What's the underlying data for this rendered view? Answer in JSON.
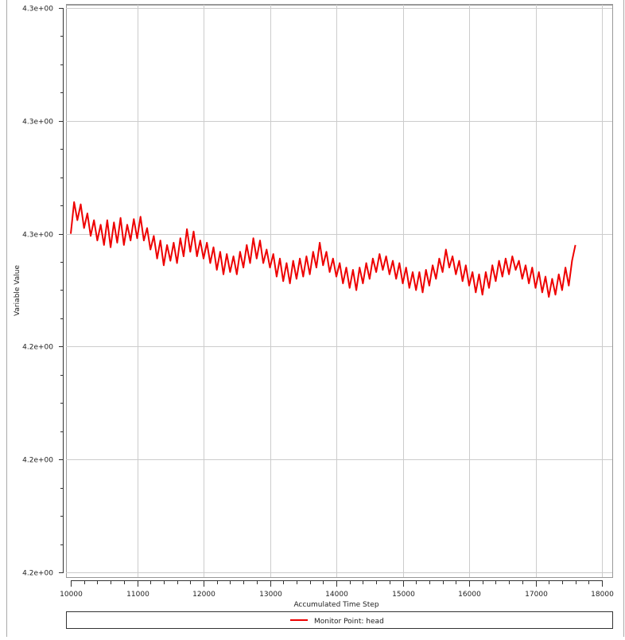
{
  "chart_data": {
    "type": "line",
    "title": "",
    "xlabel": "Accumulated Time Step",
    "ylabel": "Variable Value",
    "xlim": [
      10000,
      18000
    ],
    "ylim": [
      4.22,
      4.27
    ],
    "x_ticks": [
      10000,
      11000,
      12000,
      13000,
      14000,
      15000,
      16000,
      17000,
      18000
    ],
    "x_tick_labels": [
      "10000",
      "11000",
      "12000",
      "13000",
      "14000",
      "15000",
      "16000",
      "17000",
      "18000"
    ],
    "y_ticks": [
      4.27,
      4.26,
      4.25,
      4.24,
      4.23,
      4.22
    ],
    "y_tick_labels": [
      "4.3e+00",
      "4.3e+00",
      "4.3e+00",
      "4.2e+00",
      "4.2e+00",
      "4.2e+00"
    ],
    "grid": true,
    "legend_placement": "bottom",
    "series": [
      {
        "name": "Monitor Point: head",
        "color": "#ee0000",
        "x_start": 10000,
        "x_step": 50,
        "values": [
          4.25,
          4.2528,
          4.2512,
          4.2526,
          4.2505,
          4.2518,
          4.2498,
          4.2512,
          4.2494,
          4.2508,
          4.249,
          4.2512,
          4.2488,
          4.251,
          4.2492,
          4.2514,
          4.249,
          4.2508,
          4.2494,
          4.2513,
          4.2496,
          4.2515,
          4.2494,
          4.2505,
          4.2486,
          4.2498,
          4.2478,
          4.2494,
          4.2472,
          4.249,
          4.2476,
          4.2492,
          4.2474,
          4.2496,
          4.248,
          4.2504,
          4.2484,
          4.2502,
          4.248,
          4.2494,
          4.2478,
          4.2492,
          4.2474,
          4.2488,
          4.2468,
          4.2484,
          4.2464,
          4.2482,
          4.2466,
          4.248,
          4.2464,
          4.2484,
          4.247,
          4.249,
          4.2474,
          4.2496,
          4.2478,
          4.2494,
          4.2474,
          4.2486,
          4.247,
          4.2482,
          4.2462,
          4.2478,
          4.2458,
          4.2474,
          4.2456,
          4.2476,
          4.246,
          4.2478,
          4.2462,
          4.248,
          4.2464,
          4.2484,
          4.247,
          4.2492,
          4.2472,
          4.2484,
          4.2466,
          4.2478,
          4.2462,
          4.2474,
          4.2456,
          4.247,
          4.2452,
          4.2468,
          4.245,
          4.247,
          4.2456,
          4.2474,
          4.246,
          4.2478,
          4.2466,
          4.2482,
          4.2468,
          4.248,
          4.2464,
          4.2476,
          4.246,
          4.2474,
          4.2456,
          4.247,
          4.2452,
          4.2466,
          4.245,
          4.2466,
          4.2448,
          4.2468,
          4.2454,
          4.2472,
          4.246,
          4.2478,
          4.2466,
          4.2486,
          4.247,
          4.248,
          4.2464,
          4.2476,
          4.2458,
          4.2472,
          4.2454,
          4.2466,
          4.2448,
          4.2464,
          4.2446,
          4.2466,
          4.2452,
          4.2472,
          4.2458,
          4.2476,
          4.2462,
          4.2478,
          4.2464,
          4.248,
          4.2468,
          4.2476,
          4.246,
          4.2472,
          4.2456,
          4.247,
          4.2452,
          4.2466,
          4.2448,
          4.2462,
          4.2444,
          4.246,
          4.2446,
          4.2464,
          4.245,
          4.247,
          4.2454,
          4.2476,
          4.249
        ]
      }
    ]
  }
}
